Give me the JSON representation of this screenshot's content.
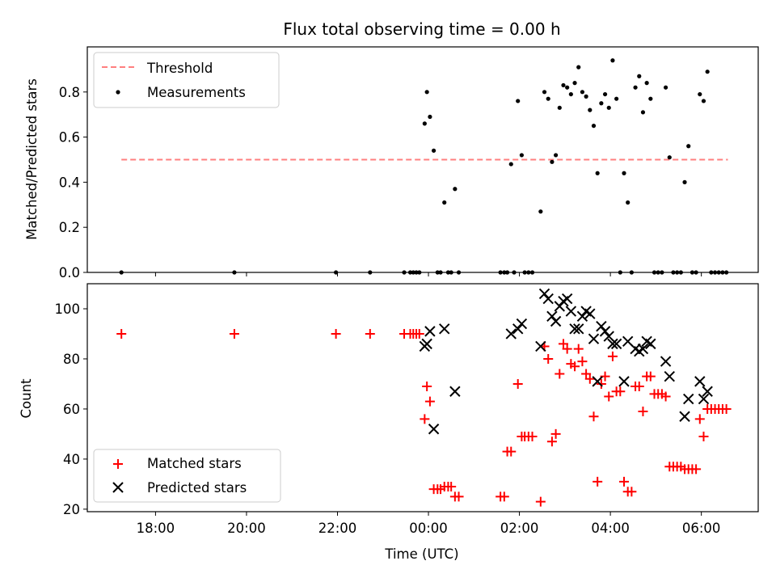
{
  "figure": {
    "title": "Flux total observing time = 0.00 h"
  },
  "chart_data": [
    {
      "type": "scatter",
      "title": "Flux total observing time = 0.00 h",
      "ylabel": "Matched/Predicted stars",
      "xlabel": "",
      "ylim": [
        0,
        1.0
      ],
      "yticks": [
        0.0,
        0.2,
        0.4,
        0.6,
        0.8
      ],
      "ytick_labels": [
        "0.0",
        "0.2",
        "0.4",
        "0.6",
        "0.8"
      ],
      "legend_position": "upper-left",
      "grid": false,
      "threshold": {
        "name": "Threshold",
        "y": 0.5,
        "x_start": "17:15",
        "x_end": "06:35",
        "color": "#ff7f7f"
      },
      "series": [
        {
          "name": "Measurements",
          "color": "#000000",
          "marker": "dot",
          "points": [
            [
              "17:15",
              0
            ],
            [
              "19:44",
              0
            ],
            [
              "21:58",
              0
            ],
            [
              "22:43",
              0
            ],
            [
              "23:28",
              0
            ],
            [
              "23:36",
              0
            ],
            [
              "23:40",
              0
            ],
            [
              "23:44",
              0
            ],
            [
              "23:48",
              0
            ],
            [
              "23:55",
              0.66
            ],
            [
              "23:58",
              0.8
            ],
            [
              "00:02",
              0.69
            ],
            [
              "00:07",
              0.54
            ],
            [
              "00:12",
              0
            ],
            [
              "00:16",
              0
            ],
            [
              "00:21",
              0.31
            ],
            [
              "00:26",
              0
            ],
            [
              "00:30",
              0
            ],
            [
              "00:35",
              0.37
            ],
            [
              "00:40",
              0
            ],
            [
              "01:35",
              0
            ],
            [
              "01:40",
              0
            ],
            [
              "01:44",
              0
            ],
            [
              "01:49",
              0.48
            ],
            [
              "01:53",
              0
            ],
            [
              "01:58",
              0.76
            ],
            [
              "02:03",
              0.52
            ],
            [
              "02:07",
              0
            ],
            [
              "02:12",
              0
            ],
            [
              "02:17",
              0
            ],
            [
              "02:28",
              0.27
            ],
            [
              "02:33",
              0.8
            ],
            [
              "02:38",
              0.77
            ],
            [
              "02:43",
              0.49
            ],
            [
              "02:48",
              0.52
            ],
            [
              "02:53",
              0.73
            ],
            [
              "02:58",
              0.83
            ],
            [
              "03:03",
              0.82
            ],
            [
              "03:08",
              0.79
            ],
            [
              "03:13",
              0.84
            ],
            [
              "03:18",
              0.91
            ],
            [
              "03:23",
              0.8
            ],
            [
              "03:28",
              0.78
            ],
            [
              "03:33",
              0.72
            ],
            [
              "03:38",
              0.65
            ],
            [
              "03:43",
              0.44
            ],
            [
              "03:48",
              0.75
            ],
            [
              "03:53",
              0.79
            ],
            [
              "03:58",
              0.73
            ],
            [
              "04:03",
              0.94
            ],
            [
              "04:08",
              0.77
            ],
            [
              "04:13",
              0
            ],
            [
              "04:18",
              0.44
            ],
            [
              "04:23",
              0.31
            ],
            [
              "04:28",
              0
            ],
            [
              "04:33",
              0.82
            ],
            [
              "04:38",
              0.87
            ],
            [
              "04:43",
              0.71
            ],
            [
              "04:48",
              0.84
            ],
            [
              "04:53",
              0.77
            ],
            [
              "04:58",
              0
            ],
            [
              "05:03",
              0
            ],
            [
              "05:08",
              0
            ],
            [
              "05:13",
              0.82
            ],
            [
              "05:18",
              0.51
            ],
            [
              "05:23",
              0
            ],
            [
              "05:28",
              0
            ],
            [
              "05:33",
              0
            ],
            [
              "05:38",
              0.4
            ],
            [
              "05:43",
              0.56
            ],
            [
              "05:48",
              0
            ],
            [
              "05:53",
              0
            ],
            [
              "05:58",
              0.79
            ],
            [
              "06:03",
              0.76
            ],
            [
              "06:08",
              0.89
            ],
            [
              "06:13",
              0
            ],
            [
              "06:18",
              0
            ],
            [
              "06:23",
              0
            ],
            [
              "06:28",
              0
            ],
            [
              "06:33",
              0
            ]
          ]
        }
      ]
    },
    {
      "type": "scatter",
      "title": "",
      "ylabel": "Count",
      "xlabel": "Time (UTC)",
      "ylim": [
        19,
        110
      ],
      "yticks": [
        20,
        40,
        60,
        80,
        100
      ],
      "ytick_labels": [
        "20",
        "40",
        "60",
        "80",
        "100"
      ],
      "xlim": [
        "16:30",
        "07:15"
      ],
      "xticks": [
        "18:00",
        "20:00",
        "22:00",
        "00:00",
        "02:00",
        "04:00",
        "06:00"
      ],
      "xtick_labels": [
        "18:00",
        "20:00",
        "22:00",
        "00:00",
        "02:00",
        "04:00",
        "06:00"
      ],
      "legend_position": "lower-left",
      "grid": false,
      "series": [
        {
          "name": "Matched stars",
          "color": "#ff0000",
          "marker": "plus",
          "points": [
            [
              "17:15",
              90
            ],
            [
              "19:44",
              90
            ],
            [
              "21:58",
              90
            ],
            [
              "22:43",
              90
            ],
            [
              "23:28",
              90
            ],
            [
              "23:36",
              90
            ],
            [
              "23:40",
              90
            ],
            [
              "23:44",
              90
            ],
            [
              "23:48",
              90
            ],
            [
              "23:55",
              56
            ],
            [
              "23:58",
              69
            ],
            [
              "00:02",
              63
            ],
            [
              "00:07",
              28
            ],
            [
              "00:12",
              28
            ],
            [
              "00:16",
              28
            ],
            [
              "00:21",
              29
            ],
            [
              "00:26",
              29
            ],
            [
              "00:30",
              29
            ],
            [
              "00:35",
              25
            ],
            [
              "00:40",
              25
            ],
            [
              "01:35",
              25
            ],
            [
              "01:40",
              25
            ],
            [
              "01:44",
              43
            ],
            [
              "01:49",
              43
            ],
            [
              "01:58",
              70
            ],
            [
              "02:03",
              49
            ],
            [
              "02:07",
              49
            ],
            [
              "02:12",
              49
            ],
            [
              "02:17",
              49
            ],
            [
              "02:28",
              23
            ],
            [
              "02:33",
              85
            ],
            [
              "02:38",
              80
            ],
            [
              "02:43",
              47
            ],
            [
              "02:48",
              50
            ],
            [
              "02:53",
              74
            ],
            [
              "02:58",
              86
            ],
            [
              "03:03",
              84
            ],
            [
              "03:08",
              78
            ],
            [
              "03:13",
              77
            ],
            [
              "03:18",
              84
            ],
            [
              "03:23",
              79
            ],
            [
              "03:28",
              74
            ],
            [
              "03:33",
              72
            ],
            [
              "03:38",
              57
            ],
            [
              "03:43",
              31
            ],
            [
              "03:48",
              70
            ],
            [
              "03:53",
              73
            ],
            [
              "03:58",
              65
            ],
            [
              "04:03",
              81
            ],
            [
              "04:08",
              67
            ],
            [
              "04:13",
              67
            ],
            [
              "04:18",
              31
            ],
            [
              "04:23",
              27
            ],
            [
              "04:28",
              27
            ],
            [
              "04:33",
              69
            ],
            [
              "04:38",
              69
            ],
            [
              "04:43",
              59
            ],
            [
              "04:48",
              73
            ],
            [
              "04:53",
              73
            ],
            [
              "04:58",
              66
            ],
            [
              "05:03",
              66
            ],
            [
              "05:08",
              66
            ],
            [
              "05:13",
              65
            ],
            [
              "05:18",
              37
            ],
            [
              "05:23",
              37
            ],
            [
              "05:28",
              37
            ],
            [
              "05:33",
              37
            ],
            [
              "05:38",
              36
            ],
            [
              "05:43",
              36
            ],
            [
              "05:48",
              36
            ],
            [
              "05:53",
              36
            ],
            [
              "05:58",
              56
            ],
            [
              "06:03",
              49
            ],
            [
              "06:08",
              60
            ],
            [
              "06:13",
              60
            ],
            [
              "06:18",
              60
            ],
            [
              "06:23",
              60
            ],
            [
              "06:28",
              60
            ],
            [
              "06:33",
              60
            ]
          ]
        },
        {
          "name": "Predicted stars",
          "color": "#000000",
          "marker": "x",
          "points": [
            [
              "23:55",
              85
            ],
            [
              "23:58",
              86
            ],
            [
              "00:02",
              91
            ],
            [
              "00:07",
              52
            ],
            [
              "00:21",
              92
            ],
            [
              "00:35",
              67
            ],
            [
              "01:49",
              90
            ],
            [
              "01:58",
              92
            ],
            [
              "02:03",
              94
            ],
            [
              "02:28",
              85
            ],
            [
              "02:33",
              106
            ],
            [
              "02:38",
              104
            ],
            [
              "02:43",
              97
            ],
            [
              "02:48",
              95
            ],
            [
              "02:53",
              101
            ],
            [
              "02:58",
              103
            ],
            [
              "03:03",
              104
            ],
            [
              "03:08",
              99
            ],
            [
              "03:13",
              92
            ],
            [
              "03:18",
              92
            ],
            [
              "03:23",
              97
            ],
            [
              "03:28",
              99
            ],
            [
              "03:33",
              98
            ],
            [
              "03:38",
              88
            ],
            [
              "03:43",
              71
            ],
            [
              "03:48",
              93
            ],
            [
              "03:53",
              91
            ],
            [
              "03:58",
              89
            ],
            [
              "04:03",
              86
            ],
            [
              "04:08",
              86
            ],
            [
              "04:18",
              71
            ],
            [
              "04:23",
              87
            ],
            [
              "04:33",
              84
            ],
            [
              "04:38",
              83
            ],
            [
              "04:43",
              84
            ],
            [
              "04:48",
              87
            ],
            [
              "04:53",
              86
            ],
            [
              "05:13",
              79
            ],
            [
              "05:18",
              73
            ],
            [
              "05:38",
              57
            ],
            [
              "05:43",
              64
            ],
            [
              "05:58",
              71
            ],
            [
              "06:03",
              64
            ],
            [
              "06:08",
              67
            ]
          ]
        }
      ]
    }
  ]
}
